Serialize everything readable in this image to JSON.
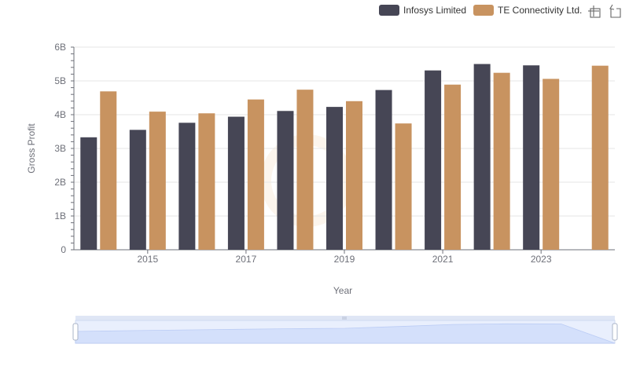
{
  "toolbar": {
    "zoom_icon": "zoom-select-icon",
    "reset_icon": "zoom-reset-icon"
  },
  "chart_data": {
    "type": "bar",
    "xlabel": "Year",
    "ylabel": "Gross Profit",
    "x_tick_labels": [
      "2015",
      "2017",
      "2019",
      "2021",
      "2023"
    ],
    "y_tick_labels": [
      "0",
      "1B",
      "2B",
      "3B",
      "4B",
      "5B",
      "6B"
    ],
    "ylim": [
      0,
      6000000000
    ],
    "categories": [
      "2014",
      "2015",
      "2016",
      "2017",
      "2018",
      "2019",
      "2020",
      "2021",
      "2022",
      "2023",
      "2024"
    ],
    "legend_position": "top-right",
    "grid": true,
    "series": [
      {
        "name": "Infosys Limited",
        "color": "#464655",
        "values": [
          3330000000,
          3550000000,
          3760000000,
          3940000000,
          4110000000,
          4230000000,
          4730000000,
          5310000000,
          5500000000,
          5460000000,
          null
        ]
      },
      {
        "name": "TE Connectivity Ltd.",
        "color": "#c89360",
        "values": [
          4690000000,
          4090000000,
          4040000000,
          4450000000,
          4740000000,
          4400000000,
          3740000000,
          4890000000,
          5240000000,
          5060000000,
          5450000000
        ]
      }
    ],
    "datazoom": {
      "range_start_pct": 0,
      "range_end_pct": 100
    }
  }
}
